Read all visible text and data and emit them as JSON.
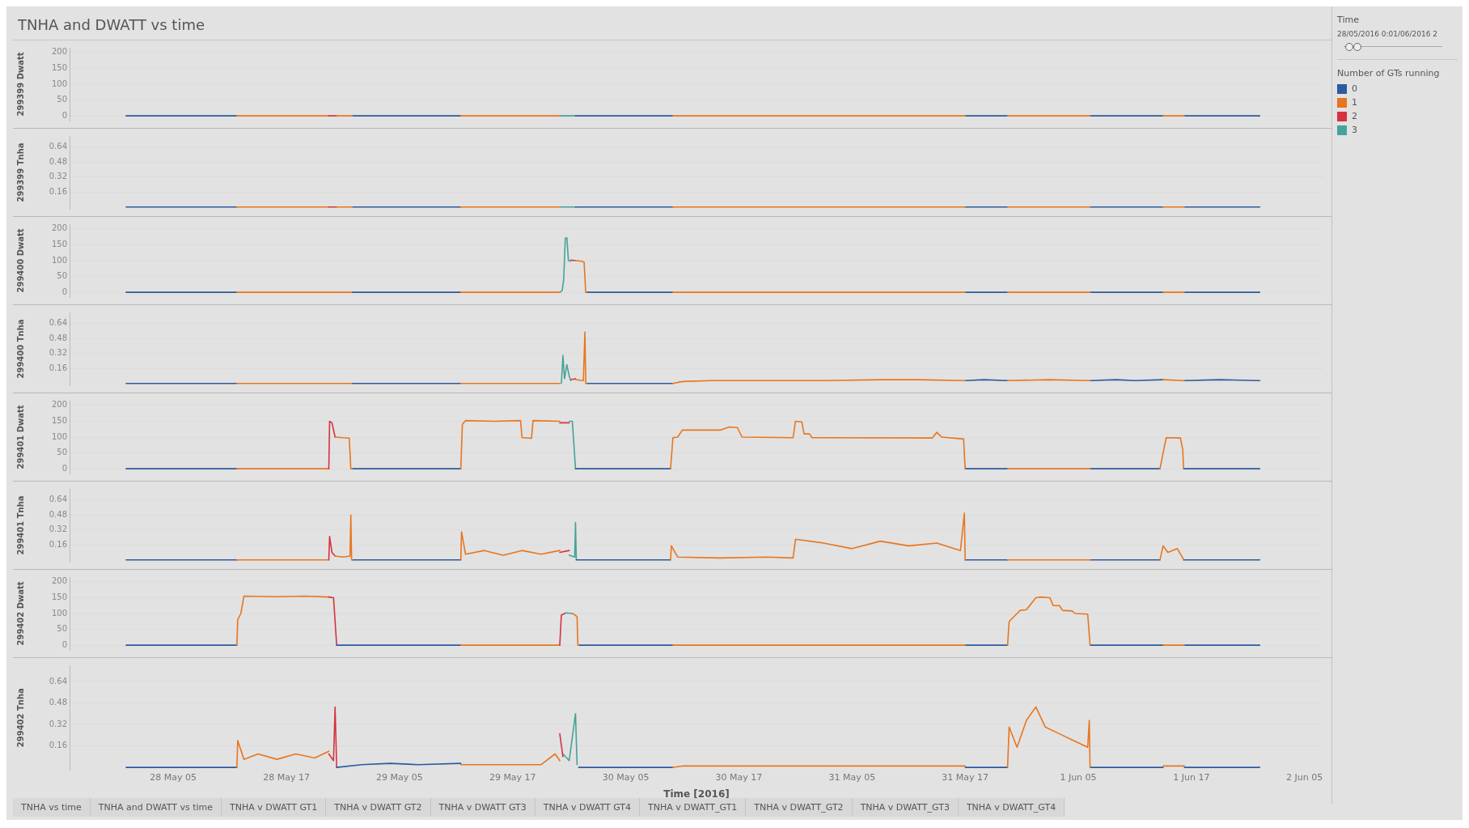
{
  "chart_data": [
    {
      "type": "line",
      "title": "TNHA and DWATT vs time",
      "ylabel": "299399 Dwatt",
      "xlim": [
        "2016-05-27T18:00",
        "2016-06-02T07:00"
      ],
      "ylim": [
        -15,
        215
      ],
      "yticks": [
        0,
        50,
        100,
        150,
        200
      ],
      "tick_labels": "y",
      "grid": "y",
      "marker": "none",
      "legend": "right",
      "legend_title": "Number of GTs running",
      "annotations": [
        "Time",
        "28/05/2016 0:01/06/2016 2"
      ],
      "series": [
        {
          "name": "0",
          "color": "#2c5a9e",
          "x": [
            "2016-05-28T00:00",
            "2016-05-28T11:45"
          ],
          "values": [
            0,
            0
          ]
        },
        {
          "name": "1",
          "color": "#e8761e",
          "x": [
            "2016-05-28T11:45",
            "2016-05-28T21:30"
          ],
          "values": [
            0,
            0
          ]
        },
        {
          "name": "2",
          "color": "#d6323f",
          "x": [
            "2016-05-28T21:30",
            "2016-05-28T22:20"
          ],
          "values": [
            0,
            0
          ]
        },
        {
          "name": "3",
          "color": "#45a399",
          "x": [
            "2016-05-29T22:00",
            "2016-05-29T23:40"
          ],
          "values": [
            0,
            0
          ]
        },
        {
          "color": "#2c5a9e",
          "x": [
            "2016-05-29T00:00",
            "2016-05-29T11:30"
          ],
          "values": [
            0,
            0
          ]
        },
        {
          "color": "#2c5a9e",
          "x": [
            "2016-05-29T23:40",
            "2016-05-30T10:00"
          ],
          "values": [
            0,
            0
          ]
        },
        {
          "color": "#2c5a9e",
          "x": [
            "2016-05-31T17:00",
            "2016-05-31T21:30"
          ],
          "values": [
            0,
            0
          ]
        },
        {
          "color": "#2c5a9e",
          "x": [
            "2016-06-01T06:15",
            "2016-06-01T14:00"
          ],
          "values": [
            0,
            0
          ]
        },
        {
          "color": "#2c5a9e",
          "x": [
            "2016-06-01T16:15",
            "2016-06-02T00:15"
          ],
          "values": [
            0,
            0
          ]
        },
        {
          "color": "#e8761e",
          "x": [
            "2016-05-28T22:20",
            "2016-05-29T00:00"
          ],
          "values": [
            0,
            0
          ]
        },
        {
          "color": "#e8761e",
          "x": [
            "2016-05-29T11:30",
            "2016-05-29T22:00"
          ],
          "values": [
            0,
            0
          ]
        },
        {
          "color": "#e8761e",
          "x": [
            "2016-05-30T10:00",
            "2016-05-31T17:00"
          ],
          "values": [
            0,
            0
          ]
        },
        {
          "color": "#e8761e",
          "x": [
            "2016-05-31T21:30",
            "2016-06-01T06:15"
          ],
          "values": [
            0,
            0
          ]
        },
        {
          "color": "#e8761e",
          "x": [
            "2016-06-01T14:00",
            "2016-06-01T16:15"
          ],
          "values": [
            0,
            0
          ]
        }
      ]
    },
    {
      "type": "line",
      "ylabel": "299399 Tnha",
      "xlim": [
        "2016-05-27T18:00",
        "2016-06-02T07:00"
      ],
      "ylim": [
        -0.02,
        0.76
      ],
      "yticks": [
        0.16,
        0.32,
        0.48,
        0.64
      ],
      "tick_labels": "y",
      "grid": "y",
      "marker": "none",
      "series": [
        {
          "name": "0",
          "color": "#2c5a9e",
          "x": [
            "2016-05-28T00:00",
            "2016-05-28T11:45"
          ],
          "values": [
            0,
            0
          ]
        },
        {
          "name": "1",
          "color": "#e8761e",
          "x": [
            "2016-05-28T11:45",
            "2016-05-28T21:30"
          ],
          "values": [
            0,
            0
          ]
        },
        {
          "name": "2",
          "color": "#d6323f",
          "x": [
            "2016-05-28T21:30",
            "2016-05-28T22:20"
          ],
          "values": [
            0,
            0
          ]
        },
        {
          "name": "3",
          "color": "#45a399",
          "x": [
            "2016-05-29T22:00",
            "2016-05-29T23:40"
          ],
          "values": [
            0,
            0
          ]
        },
        {
          "color": "#2c5a9e",
          "x": [
            "2016-05-29T00:00",
            "2016-05-29T11:30"
          ],
          "values": [
            0,
            0
          ]
        },
        {
          "color": "#2c5a9e",
          "x": [
            "2016-05-29T23:40",
            "2016-05-30T10:00"
          ],
          "values": [
            0,
            0
          ]
        },
        {
          "color": "#2c5a9e",
          "x": [
            "2016-05-31T17:00",
            "2016-05-31T21:30"
          ],
          "values": [
            0,
            0
          ]
        },
        {
          "color": "#2c5a9e",
          "x": [
            "2016-06-01T06:15",
            "2016-06-01T14:00"
          ],
          "values": [
            0,
            0
          ]
        },
        {
          "color": "#2c5a9e",
          "x": [
            "2016-06-01T16:15",
            "2016-06-02T00:15"
          ],
          "values": [
            0,
            0
          ]
        },
        {
          "color": "#e8761e",
          "x": [
            "2016-05-28T22:20",
            "2016-05-29T00:00"
          ],
          "values": [
            0,
            0
          ]
        },
        {
          "color": "#e8761e",
          "x": [
            "2016-05-29T11:30",
            "2016-05-29T22:00"
          ],
          "values": [
            0,
            0
          ]
        },
        {
          "color": "#e8761e",
          "x": [
            "2016-05-30T10:00",
            "2016-05-31T17:00"
          ],
          "values": [
            0,
            0
          ]
        },
        {
          "color": "#e8761e",
          "x": [
            "2016-05-31T21:30",
            "2016-06-01T06:15"
          ],
          "values": [
            0,
            0
          ]
        },
        {
          "color": "#e8761e",
          "x": [
            "2016-06-01T14:00",
            "2016-06-01T16:15"
          ],
          "values": [
            0,
            0
          ]
        }
      ]
    },
    {
      "type": "line",
      "ylabel": "299400 Dwatt",
      "xlim": [
        "2016-05-27T18:00",
        "2016-06-02T07:00"
      ],
      "ylim": [
        -15,
        215
      ],
      "yticks": [
        0,
        50,
        100,
        150,
        200
      ],
      "tick_labels": "y",
      "grid": "y",
      "marker": "none",
      "series": [
        {
          "name": "0",
          "color": "#2c5a9e",
          "x": [
            "2016-05-28T00:00",
            "2016-05-28T11:45"
          ],
          "values": [
            0,
            0
          ]
        },
        {
          "name": "1",
          "color": "#e8761e",
          "x": [
            "2016-05-28T11:45",
            "2016-05-29T00:00"
          ],
          "values": [
            0,
            0
          ]
        },
        {
          "name": "2",
          "color": "#d6323f",
          "x": [
            "2016-05-29T23:10",
            "2016-05-29T23:40"
          ],
          "values": [
            102,
            100
          ]
        },
        {
          "name": "3",
          "color": "#45a399",
          "x": [
            "2016-05-29T22:00",
            "2016-05-29T22:15",
            "2016-05-29T22:25",
            "2016-05-29T22:35",
            "2016-05-29T22:45",
            "2016-05-29T22:55",
            "2016-05-29T23:10"
          ],
          "values": [
            0,
            5,
            40,
            170,
            172,
            100,
            98
          ]
        },
        {
          "color": "#2c5a9e",
          "x": [
            "2016-05-29T00:00",
            "2016-05-29T11:30"
          ],
          "values": [
            0,
            0
          ]
        },
        {
          "color": "#2c5a9e",
          "x": [
            "2016-05-30T00:50",
            "2016-05-30T10:00"
          ],
          "values": [
            0,
            0
          ]
        },
        {
          "color": "#2c5a9e",
          "x": [
            "2016-05-31T17:00",
            "2016-05-31T21:30"
          ],
          "values": [
            0,
            0
          ]
        },
        {
          "color": "#2c5a9e",
          "x": [
            "2016-06-01T06:15",
            "2016-06-01T14:00"
          ],
          "values": [
            0,
            0
          ]
        },
        {
          "color": "#2c5a9e",
          "x": [
            "2016-06-01T16:15",
            "2016-06-02T00:15"
          ],
          "values": [
            0,
            0
          ]
        },
        {
          "color": "#e8761e",
          "x": [
            "2016-05-29T11:30",
            "2016-05-29T22:00"
          ],
          "values": [
            0,
            0
          ]
        },
        {
          "color": "#e8761e",
          "x": [
            "2016-05-29T23:40",
            "2016-05-30T00:20",
            "2016-05-30T00:35",
            "2016-05-30T00:45",
            "2016-05-30T00:50"
          ],
          "values": [
            100,
            98,
            95,
            0,
            0
          ]
        },
        {
          "color": "#e8761e",
          "x": [
            "2016-05-30T10:00",
            "2016-05-31T17:00"
          ],
          "values": [
            0,
            0
          ]
        },
        {
          "color": "#e8761e",
          "x": [
            "2016-05-31T21:30",
            "2016-06-01T06:15"
          ],
          "values": [
            0,
            0
          ]
        },
        {
          "color": "#e8761e",
          "x": [
            "2016-06-01T14:00",
            "2016-06-01T16:15"
          ],
          "values": [
            0,
            0
          ]
        }
      ]
    },
    {
      "type": "line",
      "ylabel": "299400 Tnha",
      "xlim": [
        "2016-05-27T18:00",
        "2016-06-02T07:00"
      ],
      "ylim": [
        -0.02,
        0.76
      ],
      "yticks": [
        0.16,
        0.32,
        0.48,
        0.64
      ],
      "tick_labels": "y",
      "grid": "y",
      "marker": "none",
      "series": [
        {
          "name": "0",
          "color": "#2c5a9e",
          "x": [
            "2016-05-28T00:00",
            "2016-05-28T11:45"
          ],
          "values": [
            0,
            0
          ]
        },
        {
          "name": "1",
          "color": "#e8761e",
          "x": [
            "2016-05-28T11:45",
            "2016-05-29T00:00"
          ],
          "values": [
            0,
            0
          ]
        },
        {
          "name": "2",
          "color": "#d6323f",
          "x": [
            "2016-05-29T23:10",
            "2016-05-29T23:40"
          ],
          "values": [
            0.04,
            0.05
          ]
        },
        {
          "name": "3",
          "color": "#45a399",
          "x": [
            "2016-05-29T22:10",
            "2016-05-29T22:20",
            "2016-05-29T22:30",
            "2016-05-29T22:45",
            "2016-05-29T23:00",
            "2016-05-29T23:10"
          ],
          "values": [
            0,
            0.3,
            0.05,
            0.2,
            0.08,
            0.03
          ]
        },
        {
          "color": "#2c5a9e",
          "x": [
            "2016-05-29T00:00",
            "2016-05-29T11:30"
          ],
          "values": [
            0,
            0
          ]
        },
        {
          "color": "#2c5a9e",
          "x": [
            "2016-05-30T00:50",
            "2016-05-30T10:00"
          ],
          "values": [
            0,
            0
          ]
        },
        {
          "color": "#2c5a9e",
          "x": [
            "2016-05-31T17:00",
            "2016-05-31T19:00",
            "2016-05-31T21:30"
          ],
          "values": [
            0.03,
            0.04,
            0.03
          ]
        },
        {
          "color": "#2c5a9e",
          "x": [
            "2016-06-01T06:15",
            "2016-06-01T09:00",
            "2016-06-01T11:00",
            "2016-06-01T14:00"
          ],
          "values": [
            0.03,
            0.04,
            0.03,
            0.04
          ]
        },
        {
          "color": "#2c5a9e",
          "x": [
            "2016-06-01T16:15",
            "2016-06-01T20:00",
            "2016-06-02T00:15"
          ],
          "values": [
            0.03,
            0.04,
            0.03
          ]
        },
        {
          "color": "#e8761e",
          "x": [
            "2016-05-29T11:30",
            "2016-05-29T22:00"
          ],
          "values": [
            0,
            0
          ]
        },
        {
          "color": "#e8761e",
          "x": [
            "2016-05-29T23:40",
            "2016-05-30T00:30",
            "2016-05-30T00:40",
            "2016-05-30T00:45",
            "2016-05-30T00:50"
          ],
          "values": [
            0.04,
            0.03,
            0.55,
            0,
            0
          ]
        },
        {
          "color": "#e8761e",
          "x": [
            "2016-05-30T10:00",
            "2016-05-30T11:00",
            "2016-05-30T14:00",
            "2016-05-30T20:00",
            "2016-05-31T02:00",
            "2016-05-31T08:00",
            "2016-05-31T12:00",
            "2016-05-31T17:00"
          ],
          "values": [
            0,
            0.02,
            0.03,
            0.03,
            0.03,
            0.04,
            0.04,
            0.03
          ]
        },
        {
          "color": "#e8761e",
          "x": [
            "2016-05-31T21:30",
            "2016-06-01T02:00",
            "2016-06-01T06:15"
          ],
          "values": [
            0.03,
            0.04,
            0.03
          ]
        },
        {
          "color": "#e8761e",
          "x": [
            "2016-06-01T14:00",
            "2016-06-01T16:15"
          ],
          "values": [
            0.04,
            0.03
          ]
        }
      ]
    },
    {
      "type": "line",
      "ylabel": "299401 Dwatt",
      "xlim": [
        "2016-05-27T18:00",
        "2016-06-02T07:00"
      ],
      "ylim": [
        -15,
        215
      ],
      "yticks": [
        0,
        50,
        100,
        150,
        200
      ],
      "tick_labels": "y",
      "grid": "y",
      "marker": "none",
      "series": [
        {
          "name": "0",
          "color": "#2c5a9e",
          "x": [
            "2016-05-28T00:00",
            "2016-05-28T11:45"
          ],
          "values": [
            0,
            0
          ]
        },
        {
          "name": "1",
          "color": "#e8761e",
          "x": [
            "2016-05-28T11:45",
            "2016-05-28T21:30"
          ],
          "values": [
            0,
            0
          ]
        },
        {
          "name": "2",
          "color": "#d6323f",
          "x": [
            "2016-05-28T21:30",
            "2016-05-28T21:35",
            "2016-05-28T21:50",
            "2016-05-28T22:10"
          ],
          "values": [
            0,
            150,
            145,
            100
          ]
        },
        {
          "name": "3",
          "color": "#45a399",
          "x": [
            "2016-05-29T23:00",
            "2016-05-29T23:20",
            "2016-05-29T23:40"
          ],
          "values": [
            150,
            150,
            0
          ]
        },
        {
          "color": "#2c5a9e",
          "x": [
            "2016-05-29T00:00",
            "2016-05-29T11:30"
          ],
          "values": [
            0,
            0
          ]
        },
        {
          "color": "#2c5a9e",
          "x": [
            "2016-05-29T23:40",
            "2016-05-30T09:45"
          ],
          "values": [
            0,
            0
          ]
        },
        {
          "color": "#2c5a9e",
          "x": [
            "2016-05-31T17:00",
            "2016-05-31T21:30"
          ],
          "values": [
            0,
            0
          ]
        },
        {
          "color": "#2c5a9e",
          "x": [
            "2016-06-01T06:15",
            "2016-06-01T13:40"
          ],
          "values": [
            0,
            0
          ]
        },
        {
          "color": "#2c5a9e",
          "x": [
            "2016-06-01T16:10",
            "2016-06-02T00:15"
          ],
          "values": [
            0,
            0
          ]
        },
        {
          "color": "#e8761e",
          "x": [
            "2016-05-28T22:10",
            "2016-05-28T23:00",
            "2016-05-28T23:40",
            "2016-05-28T23:50",
            "2016-05-29T00:00"
          ],
          "values": [
            100,
            98,
            97,
            0,
            0
          ]
        },
        {
          "color": "#e8761e",
          "x": [
            "2016-05-29T11:30",
            "2016-05-29T11:40",
            "2016-05-29T12:00",
            "2016-05-29T15:00",
            "2016-05-29T17:50",
            "2016-05-29T18:00",
            "2016-05-29T19:00",
            "2016-05-29T19:10",
            "2016-05-29T22:00"
          ],
          "values": [
            0,
            140,
            152,
            150,
            152,
            98,
            96,
            152,
            150
          ]
        },
        {
          "color": "#d6323f",
          "x": [
            "2016-05-29T22:00",
            "2016-05-29T23:00"
          ],
          "values": [
            145,
            145
          ]
        },
        {
          "color": "#e8761e",
          "x": [
            "2016-05-30T09:45",
            "2016-05-30T10:00",
            "2016-05-30T10:30",
            "2016-05-30T11:00",
            "2016-05-30T15:00",
            "2016-05-30T16:00",
            "2016-05-30T16:50",
            "2016-05-30T17:20",
            "2016-05-30T22:45",
            "2016-05-30T23:00",
            "2016-05-30T23:40",
            "2016-05-30T23:55",
            "2016-05-31T00:30",
            "2016-05-31T00:45",
            "2016-05-31T13:30",
            "2016-05-31T14:00",
            "2016-05-31T14:30",
            "2016-05-31T16:50",
            "2016-05-31T17:00"
          ],
          "values": [
            0,
            98,
            100,
            122,
            122,
            132,
            130,
            100,
            98,
            150,
            148,
            110,
            110,
            98,
            97,
            115,
            100,
            94,
            0
          ]
        },
        {
          "color": "#e8761e",
          "x": [
            "2016-05-31T21:30",
            "2016-06-01T06:15"
          ],
          "values": [
            0,
            0
          ]
        },
        {
          "color": "#e8761e",
          "x": [
            "2016-06-01T13:40",
            "2016-06-01T14:10",
            "2016-06-01T14:20",
            "2016-06-01T15:50",
            "2016-06-01T16:05",
            "2016-06-01T16:10"
          ],
          "values": [
            0,
            75,
            98,
            97,
            60,
            0
          ]
        }
      ]
    },
    {
      "type": "line",
      "ylabel": "299401 Tnha",
      "xlim": [
        "2016-05-27T18:00",
        "2016-06-02T07:00"
      ],
      "ylim": [
        -0.02,
        0.76
      ],
      "yticks": [
        0.16,
        0.32,
        0.48,
        0.64
      ],
      "tick_labels": "y",
      "grid": "y",
      "marker": "none",
      "series": [
        {
          "name": "0",
          "color": "#2c5a9e",
          "x": [
            "2016-05-28T00:00",
            "2016-05-28T11:45"
          ],
          "values": [
            0,
            0
          ]
        },
        {
          "name": "1",
          "color": "#e8761e",
          "x": [
            "2016-05-28T11:45",
            "2016-05-28T21:30"
          ],
          "values": [
            0,
            0
          ]
        },
        {
          "name": "2",
          "color": "#d6323f",
          "x": [
            "2016-05-28T21:30",
            "2016-05-28T21:35",
            "2016-05-28T21:50",
            "2016-05-28T22:10"
          ],
          "values": [
            0,
            0.25,
            0.08,
            0.04
          ]
        },
        {
          "name": "3",
          "color": "#45a399",
          "x": [
            "2016-05-29T23:00",
            "2016-05-29T23:35",
            "2016-05-29T23:40",
            "2016-05-29T23:45"
          ],
          "values": [
            0.05,
            0.03,
            0.4,
            0
          ]
        },
        {
          "color": "#2c5a9e",
          "x": [
            "2016-05-29T00:00",
            "2016-05-29T11:30"
          ],
          "values": [
            0,
            0
          ]
        },
        {
          "color": "#2c5a9e",
          "x": [
            "2016-05-29T23:45",
            "2016-05-30T09:45"
          ],
          "values": [
            0,
            0
          ]
        },
        {
          "color": "#2c5a9e",
          "x": [
            "2016-05-31T17:00",
            "2016-05-31T21:30"
          ],
          "values": [
            0,
            0
          ]
        },
        {
          "color": "#2c5a9e",
          "x": [
            "2016-06-01T06:15",
            "2016-06-01T13:40"
          ],
          "values": [
            0,
            0
          ]
        },
        {
          "color": "#2c5a9e",
          "x": [
            "2016-06-01T16:10",
            "2016-06-02T00:15"
          ],
          "values": [
            0,
            0
          ]
        },
        {
          "color": "#e8761e",
          "x": [
            "2016-05-28T22:10",
            "2016-05-28T23:00",
            "2016-05-28T23:45",
            "2016-05-28T23:50",
            "2016-05-28T23:55",
            "2016-05-29T00:00"
          ],
          "values": [
            0.04,
            0.03,
            0.04,
            0.48,
            0,
            0
          ]
        },
        {
          "color": "#e8761e",
          "x": [
            "2016-05-29T11:30",
            "2016-05-29T11:35",
            "2016-05-29T12:00",
            "2016-05-29T14:00",
            "2016-05-29T16:00",
            "2016-05-29T18:00",
            "2016-05-29T20:00",
            "2016-05-29T22:00"
          ],
          "values": [
            0,
            0.3,
            0.06,
            0.1,
            0.05,
            0.1,
            0.06,
            0.1
          ]
        },
        {
          "color": "#d6323f",
          "x": [
            "2016-05-29T22:00",
            "2016-05-29T23:00"
          ],
          "values": [
            0.08,
            0.1
          ]
        },
        {
          "color": "#e8761e",
          "x": [
            "2016-05-30T09:45",
            "2016-05-30T09:50",
            "2016-05-30T10:30",
            "2016-05-30T15:00",
            "2016-05-30T20:00",
            "2016-05-30T22:45",
            "2016-05-30T23:00",
            "2016-05-31T02:00",
            "2016-05-31T05:00",
            "2016-05-31T08:00",
            "2016-05-31T11:00",
            "2016-05-31T14:00",
            "2016-05-31T16:30",
            "2016-05-31T16:55",
            "2016-05-31T17:00"
          ],
          "values": [
            0,
            0.15,
            0.03,
            0.02,
            0.03,
            0.02,
            0.22,
            0.18,
            0.12,
            0.2,
            0.15,
            0.18,
            0.1,
            0.5,
            0
          ]
        },
        {
          "color": "#e8761e",
          "x": [
            "2016-05-31T21:30",
            "2016-06-01T06:15"
          ],
          "values": [
            0,
            0
          ]
        },
        {
          "color": "#e8761e",
          "x": [
            "2016-06-01T13:40",
            "2016-06-01T14:00",
            "2016-06-01T14:30",
            "2016-06-01T15:30",
            "2016-06-01T16:05",
            "2016-06-01T16:10"
          ],
          "values": [
            0,
            0.15,
            0.08,
            0.12,
            0.02,
            0
          ]
        }
      ]
    },
    {
      "type": "line",
      "ylabel": "299402 Dwatt",
      "xlim": [
        "2016-05-27T18:00",
        "2016-06-02T07:00"
      ],
      "ylim": [
        -15,
        215
      ],
      "yticks": [
        0,
        50,
        100,
        150,
        200
      ],
      "tick_labels": "y",
      "grid": "y",
      "marker": "none",
      "series": [
        {
          "name": "0",
          "color": "#2c5a9e",
          "x": [
            "2016-05-28T00:00",
            "2016-05-28T11:45"
          ],
          "values": [
            0,
            0
          ]
        },
        {
          "name": "1",
          "color": "#e8761e",
          "x": [
            "2016-05-28T11:45",
            "2016-05-28T11:50",
            "2016-05-28T12:10",
            "2016-05-28T12:30",
            "2016-05-28T16:00",
            "2016-05-28T19:00",
            "2016-05-28T21:30"
          ],
          "values": [
            0,
            80,
            100,
            155,
            153,
            155,
            152
          ]
        },
        {
          "name": "2",
          "color": "#d6323f",
          "x": [
            "2016-05-28T21:30",
            "2016-05-28T22:00",
            "2016-05-28T22:20"
          ],
          "values": [
            152,
            150,
            0
          ]
        },
        {
          "name": "3",
          "color": "#45a399",
          "x": [
            "2016-05-29T22:30",
            "2016-05-29T22:40",
            "2016-05-29T23:20"
          ],
          "values": [
            100,
            102,
            100
          ]
        },
        {
          "color": "#2c5a9e",
          "x": [
            "2016-05-28T22:20",
            "2016-05-29T11:30"
          ],
          "values": [
            0,
            0
          ]
        },
        {
          "color": "#2c5a9e",
          "x": [
            "2016-05-30T00:00",
            "2016-05-30T10:00"
          ],
          "values": [
            0,
            0
          ]
        },
        {
          "color": "#2c5a9e",
          "x": [
            "2016-05-31T17:00",
            "2016-05-31T21:30"
          ],
          "values": [
            0,
            0
          ]
        },
        {
          "color": "#2c5a9e",
          "x": [
            "2016-06-01T06:15",
            "2016-06-01T14:00"
          ],
          "values": [
            0,
            0
          ]
        },
        {
          "color": "#2c5a9e",
          "x": [
            "2016-06-01T16:15",
            "2016-06-02T00:15"
          ],
          "values": [
            0,
            0
          ]
        },
        {
          "color": "#e8761e",
          "x": [
            "2016-05-29T11:30",
            "2016-05-29T22:00"
          ],
          "values": [
            0,
            0
          ]
        },
        {
          "color": "#d6323f",
          "x": [
            "2016-05-29T22:00",
            "2016-05-29T22:10",
            "2016-05-29T22:30"
          ],
          "values": [
            0,
            95,
            100
          ]
        },
        {
          "color": "#e8761e",
          "x": [
            "2016-05-29T23:20",
            "2016-05-29T23:30",
            "2016-05-29T23:50",
            "2016-05-29T23:55",
            "2016-05-30T00:00"
          ],
          "values": [
            100,
            98,
            90,
            0,
            0
          ]
        },
        {
          "color": "#e8761e",
          "x": [
            "2016-05-30T10:00",
            "2016-05-31T17:00"
          ],
          "values": [
            0,
            0
          ]
        },
        {
          "color": "#e8761e",
          "x": [
            "2016-05-31T21:30",
            "2016-05-31T21:40",
            "2016-05-31T22:30",
            "2016-05-31T22:50",
            "2016-05-31T23:30",
            "2016-06-01T00:30",
            "2016-06-01T01:00",
            "2016-06-01T02:00",
            "2016-06-01T02:20",
            "2016-06-01T03:00",
            "2016-06-01T03:20",
            "2016-06-01T04:20",
            "2016-06-01T04:40",
            "2016-06-01T06:00",
            "2016-06-01T06:15"
          ],
          "values": [
            0,
            75,
            100,
            110,
            112,
            150,
            152,
            150,
            125,
            125,
            110,
            108,
            100,
            98,
            0
          ]
        },
        {
          "color": "#e8761e",
          "x": [
            "2016-06-01T14:00",
            "2016-06-01T16:15"
          ],
          "values": [
            0,
            0
          ]
        }
      ]
    },
    {
      "type": "line",
      "ylabel": "299402 Tnha",
      "xlabel": "Time [2016]",
      "xlim": [
        "2016-05-27T18:00",
        "2016-06-02T07:00"
      ],
      "ylim": [
        -0.02,
        0.76
      ],
      "yticks": [
        0.16,
        0.32,
        0.48,
        0.64
      ],
      "xticks": [
        {
          "value": "2016-05-28T05:00",
          "label": "28 May 05"
        },
        {
          "value": "2016-05-28T17:00",
          "label": "28 May 17"
        },
        {
          "value": "2016-05-29T05:00",
          "label": "29 May 05"
        },
        {
          "value": "2016-05-29T17:00",
          "label": "29 May 17"
        },
        {
          "value": "2016-05-30T05:00",
          "label": "30 May 05"
        },
        {
          "value": "2016-05-30T17:00",
          "label": "30 May 17"
        },
        {
          "value": "2016-05-31T05:00",
          "label": "31 May 05"
        },
        {
          "value": "2016-05-31T17:00",
          "label": "31 May 17"
        },
        {
          "value": "2016-06-01T05:00",
          "label": "1 Jun 05"
        },
        {
          "value": "2016-06-01T17:00",
          "label": "1 Jun 17"
        },
        {
          "value": "2016-06-02T05:00",
          "label": "2 Jun 05"
        }
      ],
      "grid": "y",
      "marker": "none",
      "annotations": [
        "TNHA vs time",
        "TNHA and DWATT vs time",
        "TNHA v DWATT GT1",
        "TNHA v DWATT GT2",
        "TNHA v DWATT GT3",
        "TNHA v DWATT GT4",
        "TNHA v DWATT_GT1",
        "TNHA v DWATT_GT2",
        "TNHA v DWATT_GT3",
        "TNHA v DWATT_GT4"
      ],
      "series": [
        {
          "name": "0",
          "color": "#2c5a9e",
          "x": [
            "2016-05-28T00:00",
            "2016-05-28T11:45"
          ],
          "values": [
            0,
            0
          ]
        },
        {
          "name": "1",
          "color": "#e8761e",
          "x": [
            "2016-05-28T11:45",
            "2016-05-28T11:50",
            "2016-05-28T12:30",
            "2016-05-28T14:00",
            "2016-05-28T16:00",
            "2016-05-28T18:00",
            "2016-05-28T20:00",
            "2016-05-28T21:30"
          ],
          "values": [
            0,
            0.2,
            0.06,
            0.1,
            0.06,
            0.1,
            0.07,
            0.12
          ]
        },
        {
          "name": "2",
          "color": "#d6323f",
          "x": [
            "2016-05-28T21:30",
            "2016-05-28T22:00",
            "2016-05-28T22:10",
            "2016-05-28T22:20"
          ],
          "values": [
            0.1,
            0.05,
            0.45,
            0
          ]
        },
        {
          "name": "3",
          "color": "#45a399",
          "x": [
            "2016-05-29T22:20",
            "2016-05-29T23:00",
            "2016-05-29T23:40",
            "2016-05-29T23:50"
          ],
          "values": [
            0.1,
            0.05,
            0.4,
            0.02
          ]
        },
        {
          "color": "#2c5a9e",
          "x": [
            "2016-05-28T22:20",
            "2016-05-29T01:00",
            "2016-05-29T04:00",
            "2016-05-29T07:00",
            "2016-05-29T11:30"
          ],
          "values": [
            0,
            0.02,
            0.03,
            0.02,
            0.03
          ]
        },
        {
          "color": "#2c5a9e",
          "x": [
            "2016-05-30T00:00",
            "2016-05-30T10:00"
          ],
          "values": [
            0,
            0
          ]
        },
        {
          "color": "#2c5a9e",
          "x": [
            "2016-05-31T17:00",
            "2016-05-31T21:30"
          ],
          "values": [
            0,
            0
          ]
        },
        {
          "color": "#2c5a9e",
          "x": [
            "2016-06-01T06:15",
            "2016-06-01T14:00"
          ],
          "values": [
            0,
            0
          ]
        },
        {
          "color": "#2c5a9e",
          "x": [
            "2016-06-01T16:15",
            "2016-06-02T00:15"
          ],
          "values": [
            0,
            0
          ]
        },
        {
          "color": "#e8761e",
          "x": [
            "2016-05-29T11:30",
            "2016-05-29T15:00",
            "2016-05-29T20:00",
            "2016-05-29T21:30",
            "2016-05-29T22:00"
          ],
          "values": [
            0.02,
            0.02,
            0.02,
            0.1,
            0.05
          ]
        },
        {
          "color": "#d6323f",
          "x": [
            "2016-05-29T22:00",
            "2016-05-29T22:20"
          ],
          "values": [
            0.25,
            0.08
          ]
        },
        {
          "color": "#e8761e",
          "x": [
            "2016-05-30T10:00",
            "2016-05-30T11:00",
            "2016-05-31T17:00"
          ],
          "values": [
            0,
            0.01,
            0.01
          ]
        },
        {
          "color": "#e8761e",
          "x": [
            "2016-05-31T21:30",
            "2016-05-31T21:40",
            "2016-05-31T22:30",
            "2016-05-31T23:30",
            "2016-06-01T00:30",
            "2016-06-01T01:30",
            "2016-06-01T03:00",
            "2016-06-01T04:30",
            "2016-06-01T06:00",
            "2016-06-01T06:10",
            "2016-06-01T06:15"
          ],
          "values": [
            0,
            0.3,
            0.15,
            0.35,
            0.45,
            0.3,
            0.25,
            0.2,
            0.15,
            0.35,
            0
          ]
        },
        {
          "color": "#e8761e",
          "x": [
            "2016-06-01T14:00",
            "2016-06-01T16:15"
          ],
          "values": [
            0.01,
            0.01
          ]
        }
      ]
    }
  ]
}
